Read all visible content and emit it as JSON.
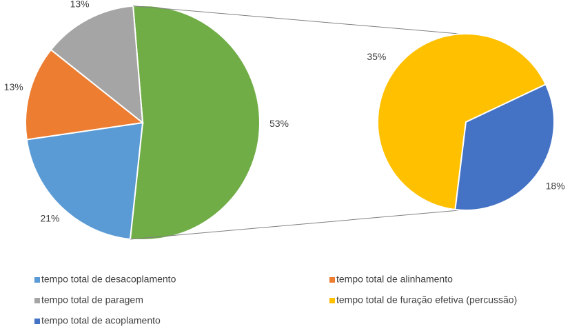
{
  "chart_data": {
    "type": "pie-of-pie",
    "categories": [
      "tempo total de desacoplamento",
      "tempo total de alinhamento",
      "tempo total de paragem",
      "tempo total de furação efetiva (percussão)",
      "tempo total de acoplamento"
    ],
    "values": [
      21,
      13,
      13,
      35,
      18
    ],
    "value_labels": [
      "21%",
      "13%",
      "13%",
      "35%",
      "18%"
    ],
    "colors": [
      "#5b9bd5",
      "#ed7d31",
      "#a5a5a5",
      "#ffc000",
      "#4472c4"
    ],
    "secondary": [
      false,
      false,
      false,
      true,
      true
    ],
    "other_value": 53,
    "other_label": "53%",
    "other_color": "#70ad47",
    "legend": "bottom"
  }
}
